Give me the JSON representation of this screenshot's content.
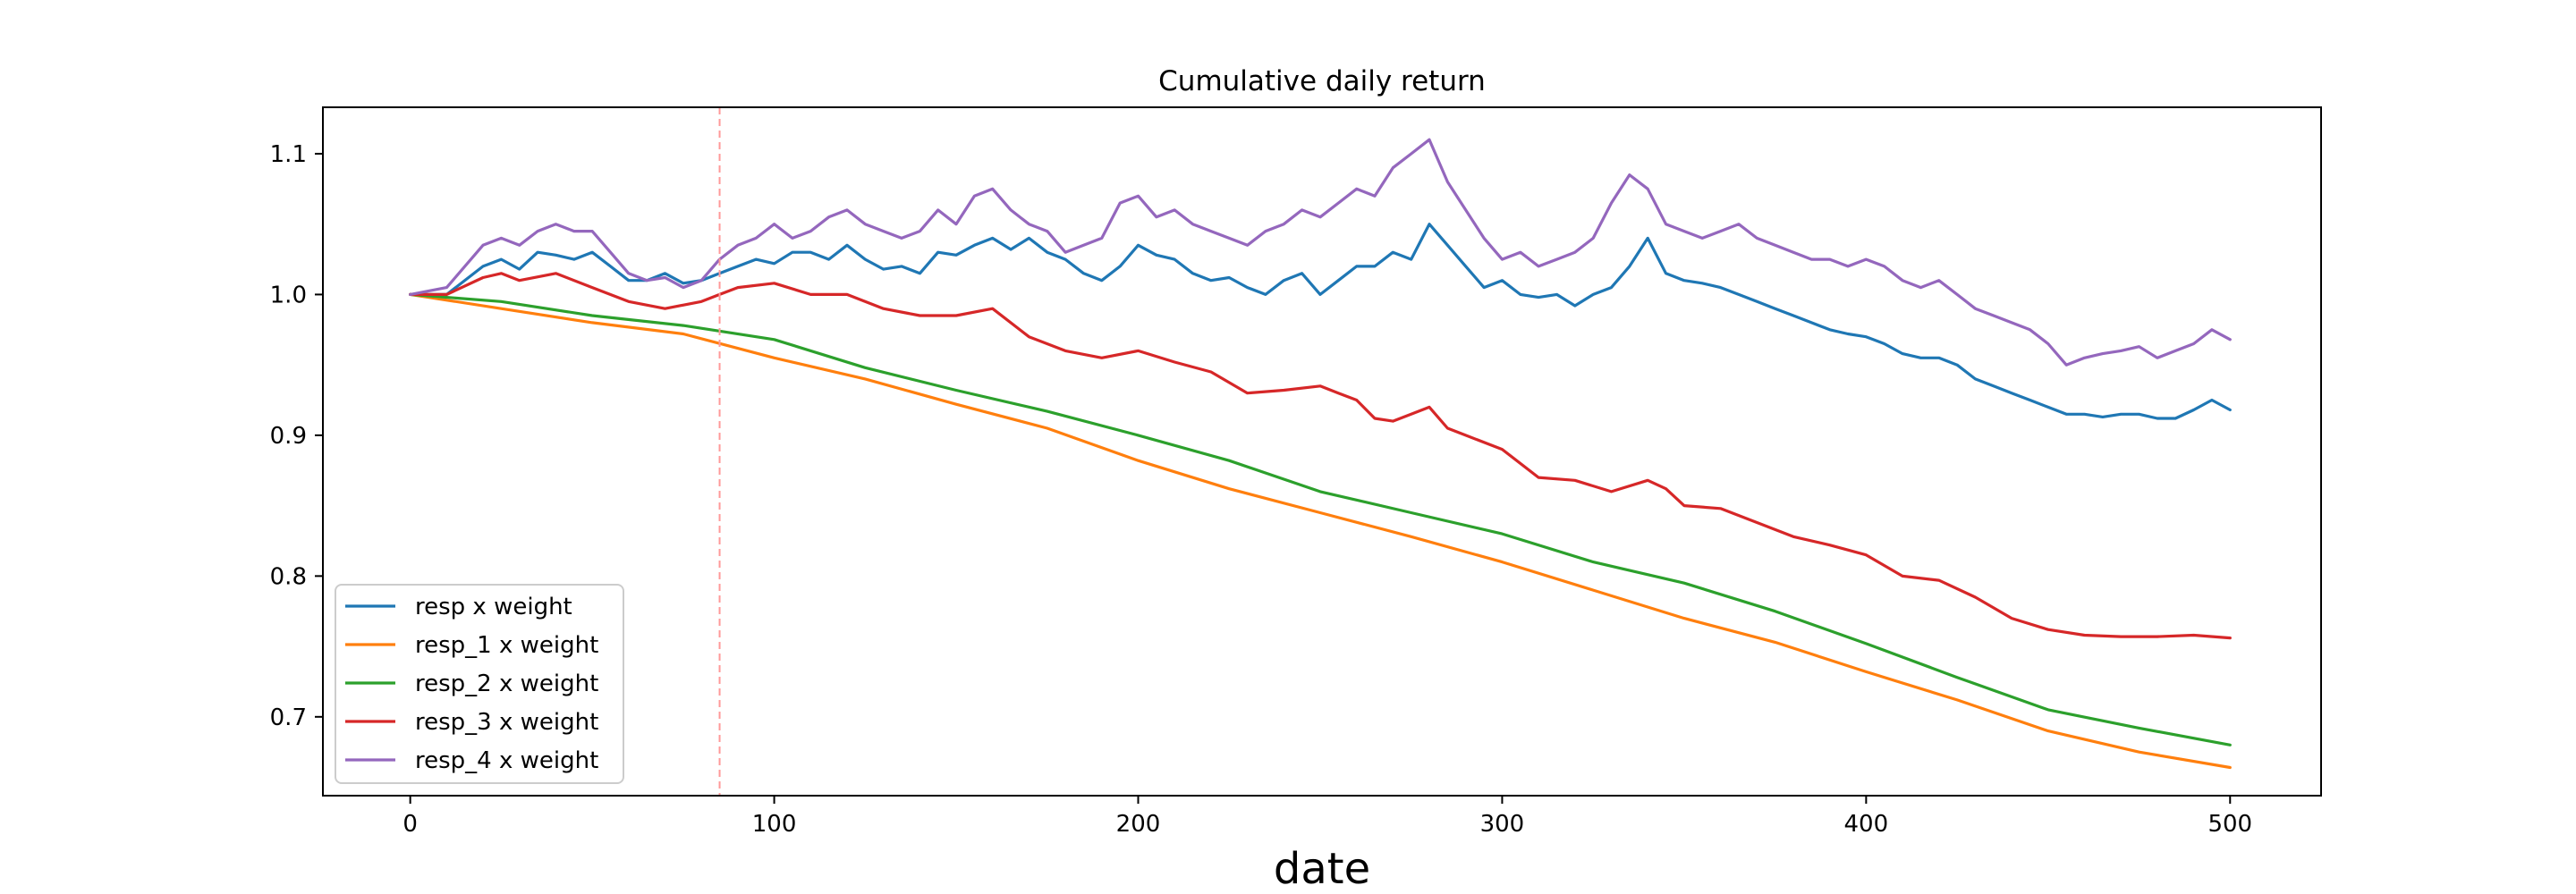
{
  "chart_data": {
    "type": "line",
    "title": "Cumulative daily return",
    "xlabel": "date",
    "ylabel": "",
    "xlim": [
      -24,
      525
    ],
    "ylim": [
      0.644,
      1.133
    ],
    "xticks": [
      0,
      100,
      200,
      300,
      400,
      500
    ],
    "yticks": [
      0.7,
      0.8,
      0.9,
      1.0,
      1.1
    ],
    "xtick_labels": [
      "0",
      "100",
      "200",
      "300",
      "400",
      "500"
    ],
    "ytick_labels": [
      "0.7",
      "0.8",
      "0.9",
      "1.0",
      "1.1"
    ],
    "vline": {
      "x": 85,
      "color": "#ff9999",
      "style": "dashed"
    },
    "legend_position": "lower-left",
    "grid": false,
    "series": [
      {
        "name": "resp x weight",
        "color": "#1f77b4",
        "x": [
          0,
          10,
          20,
          25,
          30,
          35,
          40,
          45,
          50,
          55,
          60,
          65,
          70,
          75,
          80,
          85,
          90,
          95,
          100,
          105,
          110,
          115,
          120,
          125,
          130,
          135,
          140,
          145,
          150,
          155,
          160,
          165,
          170,
          175,
          180,
          185,
          190,
          195,
          200,
          205,
          210,
          215,
          220,
          225,
          230,
          235,
          240,
          245,
          250,
          255,
          260,
          265,
          270,
          275,
          280,
          285,
          290,
          295,
          300,
          305,
          310,
          315,
          320,
          325,
          330,
          335,
          340,
          345,
          350,
          355,
          360,
          365,
          370,
          375,
          380,
          385,
          390,
          395,
          400,
          405,
          410,
          415,
          420,
          425,
          430,
          435,
          440,
          445,
          450,
          455,
          460,
          465,
          470,
          475,
          480,
          485,
          490,
          495,
          500
        ],
        "y": [
          1.0,
          1.0,
          1.02,
          1.025,
          1.018,
          1.03,
          1.028,
          1.025,
          1.03,
          1.02,
          1.01,
          1.01,
          1.015,
          1.008,
          1.01,
          1.015,
          1.02,
          1.025,
          1.022,
          1.03,
          1.03,
          1.025,
          1.035,
          1.025,
          1.018,
          1.02,
          1.015,
          1.03,
          1.028,
          1.035,
          1.04,
          1.032,
          1.04,
          1.03,
          1.025,
          1.015,
          1.01,
          1.02,
          1.035,
          1.028,
          1.025,
          1.015,
          1.01,
          1.012,
          1.005,
          1.0,
          1.01,
          1.015,
          1.0,
          1.01,
          1.02,
          1.02,
          1.03,
          1.025,
          1.05,
          1.035,
          1.02,
          1.005,
          1.01,
          1.0,
          0.998,
          1.0,
          0.992,
          1.0,
          1.005,
          1.02,
          1.04,
          1.015,
          1.01,
          1.008,
          1.005,
          1.0,
          0.995,
          0.99,
          0.985,
          0.98,
          0.975,
          0.972,
          0.97,
          0.965,
          0.958,
          0.955,
          0.955,
          0.95,
          0.94,
          0.935,
          0.93,
          0.925,
          0.92,
          0.915,
          0.915,
          0.913,
          0.915,
          0.915,
          0.912,
          0.912,
          0.918,
          0.925,
          0.918
        ]
      },
      {
        "name": "resp_1 x weight",
        "color": "#ff7f0e",
        "x": [
          0,
          25,
          50,
          75,
          100,
          125,
          150,
          175,
          200,
          225,
          250,
          275,
          300,
          325,
          350,
          375,
          400,
          425,
          450,
          475,
          500
        ],
        "y": [
          1.0,
          0.99,
          0.98,
          0.972,
          0.955,
          0.94,
          0.922,
          0.905,
          0.882,
          0.862,
          0.845,
          0.828,
          0.81,
          0.79,
          0.77,
          0.753,
          0.732,
          0.712,
          0.69,
          0.675,
          0.664
        ]
      },
      {
        "name": "resp_2 x weight",
        "color": "#2ca02c",
        "x": [
          0,
          25,
          50,
          75,
          100,
          125,
          150,
          175,
          200,
          225,
          250,
          275,
          300,
          325,
          350,
          375,
          400,
          425,
          450,
          475,
          500
        ],
        "y": [
          1.0,
          0.995,
          0.985,
          0.978,
          0.968,
          0.948,
          0.932,
          0.917,
          0.9,
          0.882,
          0.86,
          0.845,
          0.83,
          0.81,
          0.795,
          0.775,
          0.752,
          0.728,
          0.705,
          0.692,
          0.68
        ]
      },
      {
        "name": "resp_3 x weight",
        "color": "#d62728",
        "x": [
          0,
          10,
          20,
          25,
          30,
          40,
          50,
          60,
          70,
          80,
          85,
          90,
          100,
          110,
          120,
          130,
          140,
          150,
          160,
          170,
          180,
          190,
          200,
          210,
          220,
          230,
          240,
          250,
          255,
          260,
          265,
          270,
          275,
          280,
          285,
          290,
          300,
          310,
          320,
          330,
          340,
          345,
          350,
          360,
          370,
          380,
          390,
          400,
          410,
          420,
          430,
          440,
          450,
          460,
          470,
          480,
          490,
          500
        ],
        "y": [
          1.0,
          1.0,
          1.012,
          1.015,
          1.01,
          1.015,
          1.005,
          0.995,
          0.99,
          0.995,
          1.0,
          1.005,
          1.008,
          1.0,
          1.0,
          0.99,
          0.985,
          0.985,
          0.99,
          0.97,
          0.96,
          0.955,
          0.96,
          0.952,
          0.945,
          0.93,
          0.932,
          0.935,
          0.93,
          0.925,
          0.912,
          0.91,
          0.915,
          0.92,
          0.905,
          0.9,
          0.89,
          0.87,
          0.868,
          0.86,
          0.868,
          0.862,
          0.85,
          0.848,
          0.838,
          0.828,
          0.822,
          0.815,
          0.8,
          0.797,
          0.785,
          0.77,
          0.762,
          0.758,
          0.757,
          0.757,
          0.758,
          0.756
        ]
      },
      {
        "name": "resp_4 x weight",
        "color": "#9467bd",
        "x": [
          0,
          10,
          20,
          25,
          30,
          35,
          40,
          45,
          50,
          55,
          60,
          65,
          70,
          75,
          80,
          85,
          90,
          95,
          100,
          105,
          110,
          115,
          120,
          125,
          130,
          135,
          140,
          145,
          150,
          155,
          160,
          165,
          170,
          175,
          180,
          185,
          190,
          195,
          200,
          205,
          210,
          215,
          220,
          225,
          230,
          235,
          240,
          245,
          250,
          255,
          260,
          265,
          270,
          275,
          280,
          285,
          290,
          295,
          300,
          305,
          310,
          315,
          320,
          325,
          330,
          335,
          340,
          345,
          350,
          355,
          360,
          365,
          370,
          375,
          380,
          385,
          390,
          395,
          400,
          405,
          410,
          415,
          420,
          425,
          430,
          435,
          440,
          445,
          450,
          455,
          460,
          465,
          470,
          475,
          480,
          485,
          490,
          495,
          500
        ],
        "y": [
          1.0,
          1.005,
          1.035,
          1.04,
          1.035,
          1.045,
          1.05,
          1.045,
          1.045,
          1.03,
          1.015,
          1.01,
          1.012,
          1.005,
          1.01,
          1.025,
          1.035,
          1.04,
          1.05,
          1.04,
          1.045,
          1.055,
          1.06,
          1.05,
          1.045,
          1.04,
          1.045,
          1.06,
          1.05,
          1.07,
          1.075,
          1.06,
          1.05,
          1.045,
          1.03,
          1.035,
          1.04,
          1.065,
          1.07,
          1.055,
          1.06,
          1.05,
          1.045,
          1.04,
          1.035,
          1.045,
          1.05,
          1.06,
          1.055,
          1.065,
          1.075,
          1.07,
          1.09,
          1.1,
          1.11,
          1.08,
          1.06,
          1.04,
          1.025,
          1.03,
          1.02,
          1.025,
          1.03,
          1.04,
          1.065,
          1.085,
          1.075,
          1.05,
          1.045,
          1.04,
          1.045,
          1.05,
          1.04,
          1.035,
          1.03,
          1.025,
          1.025,
          1.02,
          1.025,
          1.02,
          1.01,
          1.005,
          1.01,
          1.0,
          0.99,
          0.985,
          0.98,
          0.975,
          0.965,
          0.95,
          0.955,
          0.958,
          0.96,
          0.963,
          0.955,
          0.96,
          0.965,
          0.975,
          0.968
        ]
      }
    ]
  }
}
